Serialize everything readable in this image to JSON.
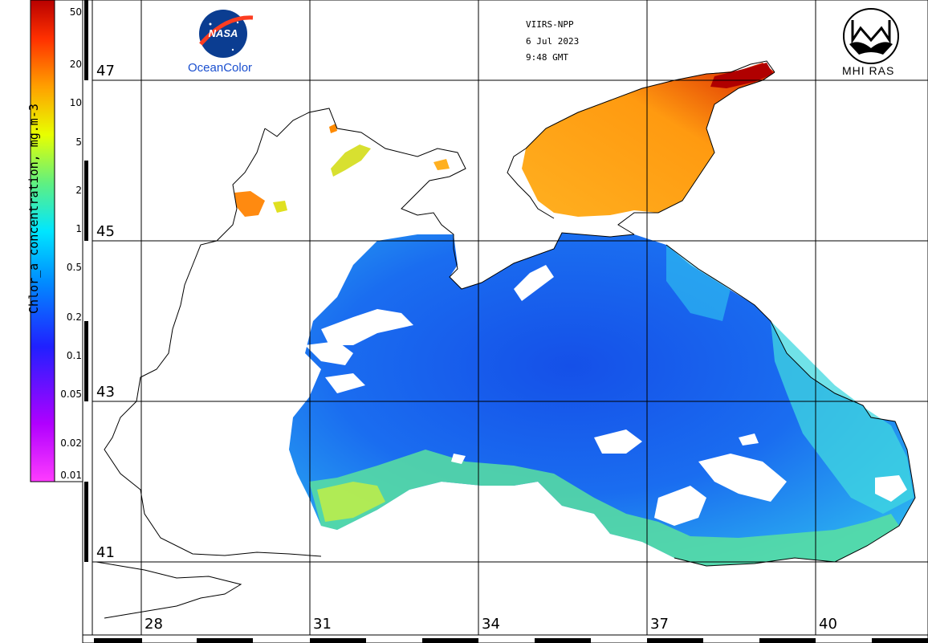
{
  "colorbar": {
    "title": "Chlor_a concentration, mg.m-3",
    "ticks": [
      "50",
      "20",
      "10",
      "5",
      "2",
      "1",
      "0.5",
      "0.2",
      "0.1",
      "0.05",
      "0.02",
      "0.01"
    ]
  },
  "latitudes": [
    "47",
    "45",
    "43",
    "41"
  ],
  "longitudes": [
    "28",
    "31",
    "34",
    "37",
    "40"
  ],
  "header": {
    "sensor": "VIIRS-NPP",
    "date": "6 Jul 2023",
    "time": "9:48 GMT"
  },
  "logos": {
    "nasa_wordmark": "NASA",
    "nasa_caption": "OceanColor",
    "mhi_caption": "MHI RAS"
  },
  "colors": {
    "low": "#ff33ff",
    "mid": "#1e5ff0",
    "high": "#cc0000",
    "land": "#ffffff",
    "coast": "#000000"
  }
}
